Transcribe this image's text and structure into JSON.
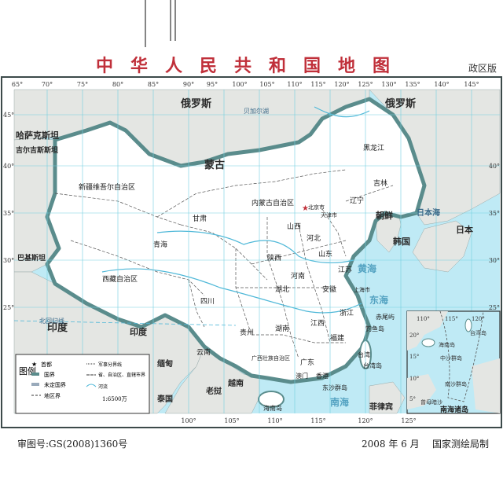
{
  "title": "中华人民共和国地图",
  "edition": "政区版",
  "footer": {
    "approval": "审图号:GS(2008)1360号",
    "date": "2008 年 6 月",
    "publisher": "国家测绘局制"
  },
  "map": {
    "lon_ticks_top": [
      "65°",
      "70°",
      "75°",
      "80°",
      "85°",
      "90°",
      "95°",
      "100°",
      "105°",
      "110°",
      "115°",
      "120°",
      "125°",
      "130°",
      "135°",
      "140°",
      "145°"
    ],
    "lon_ticks_bottom": [
      "100°",
      "105°",
      "110°",
      "115°",
      "120°",
      "125°"
    ],
    "lat_ticks_left": [
      "45°",
      "40°",
      "35°",
      "30°",
      "25°"
    ],
    "lat_ticks_right": [
      "40°",
      "35°",
      "30°",
      "25°"
    ],
    "countries": {
      "russia_w": "俄罗斯",
      "russia_e": "俄罗斯",
      "mongolia": "蒙古",
      "kazakhstan": "哈萨克斯坦",
      "kyrgyzstan": "吉尔吉斯斯坦",
      "korea_n": "朝鲜",
      "korea_s": "韩国",
      "japan": "日本",
      "india": "印度",
      "india2": "印度",
      "pakistan": "巴基斯坦",
      "myanmar": "缅甸",
      "vietnam": "越南",
      "thailand": "泰国",
      "laos": "老挝",
      "philippines": "菲律宾",
      "japan_sea": "日本海"
    },
    "regions": {
      "heilongjiang": "黑龙江",
      "jilin": "吉林",
      "liaoning": "辽宁",
      "neimenggu": "内蒙古自治区",
      "xinjiang": "新疆维吾尔自治区",
      "gansu": "甘肃",
      "qinghai": "青海",
      "xizang": "西藏自治区",
      "sichuan": "四川",
      "yunnan": "云南",
      "guizhou": "贵州",
      "guangxi": "广西壮族自治区",
      "hunan": "湖南",
      "hubei": "湖北",
      "henan": "河南",
      "shaanxi": "陕西",
      "shanxi": "山西",
      "hebei": "河北",
      "shandong": "山东",
      "jiangsu": "江苏",
      "anhui": "安徽",
      "zhejiang": "浙江",
      "jiangxi": "江西",
      "fujian": "福建",
      "guangdong": "广东",
      "hainan": "海南岛",
      "taiwan": "台湾",
      "beijing": "北京市",
      "tianjin": "天津市",
      "shanghai": "上海市",
      "xianggang": "香港",
      "aomen": "澳门",
      "huanghai": "黄海",
      "donghai": "东海",
      "nanhai": "南海",
      "dongsha": "东沙群岛",
      "diaoyu": "钓鱼岛",
      "chiwei": "赤尾屿",
      "taiwan_dao": "台湾岛",
      "beihuigui": "北回归线",
      "heilong_river": "黑龙江",
      "baikal": "贝加尔湖"
    },
    "legend": {
      "title": "图例",
      "items": [
        "首都",
        "国界",
        "未定国界",
        "地区界",
        "军事分界线",
        "省、自治区、直辖市界",
        "河流"
      ],
      "scale": "1:6500万"
    },
    "inset": {
      "lon_ticks": [
        "110°",
        "115°",
        "120°"
      ],
      "lat_ticks": [
        "20°",
        "15°",
        "10°",
        "5°"
      ],
      "labels": [
        "海南岛",
        "台湾岛",
        "中沙群岛",
        "南沙群岛",
        "曾母暗沙",
        "南海诸岛"
      ]
    }
  },
  "colors": {
    "sea": "#bfeaf5",
    "land_foreign": "#e4e6e3",
    "china": "#ffffff",
    "border": "#5a8c8c",
    "grid": "#72cfe0",
    "title": "#c0303a"
  }
}
